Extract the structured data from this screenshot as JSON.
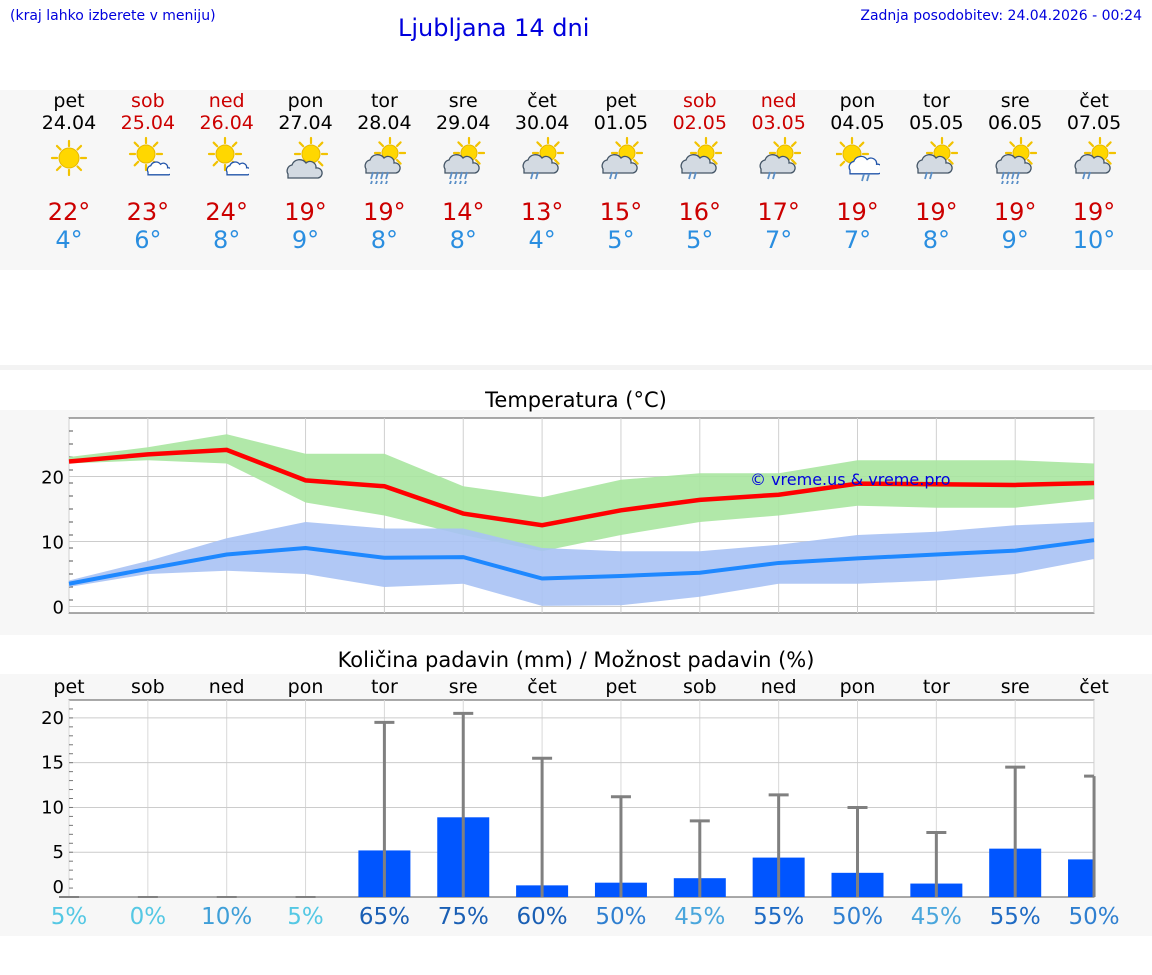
{
  "header": {
    "location_hint": "(kraj lahko izberete v meniju)",
    "title": "Ljubljana 14 dni",
    "last_update": "Zadnja posodobitev: 24.04.2026 - 00:24"
  },
  "days": [
    {
      "name": "pet",
      "date": "24.04",
      "weekend": false,
      "icon": "sun-icon",
      "max": "22°",
      "min": "4°"
    },
    {
      "name": "sob",
      "date": "25.04",
      "weekend": true,
      "icon": "sun-cloud-icon",
      "max": "23°",
      "min": "6°"
    },
    {
      "name": "ned",
      "date": "26.04",
      "weekend": true,
      "icon": "sun-cloud-icon",
      "max": "24°",
      "min": "8°"
    },
    {
      "name": "pon",
      "date": "27.04",
      "weekend": false,
      "icon": "cloud-sun-icon",
      "max": "19°",
      "min": "9°"
    },
    {
      "name": "tor",
      "date": "28.04",
      "weekend": false,
      "icon": "rain-heavy-sun-icon",
      "max": "19°",
      "min": "8°"
    },
    {
      "name": "sre",
      "date": "29.04",
      "weekend": false,
      "icon": "rain-heavy-sun-icon",
      "max": "14°",
      "min": "8°"
    },
    {
      "name": "čet",
      "date": "30.04",
      "weekend": false,
      "icon": "rain-sun-icon",
      "max": "13°",
      "min": "4°"
    },
    {
      "name": "pet",
      "date": "01.05",
      "weekend": false,
      "icon": "rain-sun-icon",
      "max": "15°",
      "min": "5°"
    },
    {
      "name": "sob",
      "date": "02.05",
      "weekend": true,
      "icon": "rain-sun-icon",
      "max": "16°",
      "min": "5°"
    },
    {
      "name": "ned",
      "date": "03.05",
      "weekend": true,
      "icon": "rain-sun-icon",
      "max": "17°",
      "min": "7°"
    },
    {
      "name": "pon",
      "date": "04.05",
      "weekend": false,
      "icon": "sun-cloud-rain-icon",
      "max": "19°",
      "min": "7°"
    },
    {
      "name": "tor",
      "date": "05.05",
      "weekend": false,
      "icon": "rain-sun-icon",
      "max": "19°",
      "min": "8°"
    },
    {
      "name": "sre",
      "date": "06.05",
      "weekend": false,
      "icon": "rain-heavy-sun-icon",
      "max": "19°",
      "min": "9°"
    },
    {
      "name": "čet",
      "date": "07.05",
      "weekend": false,
      "icon": "rain-sun-icon",
      "max": "19°",
      "min": "10°"
    }
  ],
  "colors": {
    "weekday": "#000000",
    "weekend": "#cc0000",
    "max_temp": "#cc0000",
    "min_temp": "#2a8ee0",
    "max_band": "#a8e6a0",
    "min_band": "#a9c2f4",
    "max_line": "#ff0000",
    "min_line": "#1e88ff",
    "bar": "#0055ff",
    "error_bar": "#808080"
  },
  "chart_data": [
    {
      "type": "line",
      "title": "Temperatura (°C)",
      "watermark": "© vreme.us & vreme.pro",
      "x": [
        "24.04",
        "25.04",
        "26.04",
        "27.04",
        "28.04",
        "29.04",
        "30.04",
        "01.05",
        "02.05",
        "03.05",
        "04.05",
        "05.05",
        "06.05",
        "07.05"
      ],
      "ylim": [
        -1,
        29
      ],
      "yticks": [
        0,
        10,
        20
      ],
      "grid": true,
      "series": [
        {
          "role": "max",
          "values": [
            22.3,
            23.4,
            24.1,
            19.4,
            18.5,
            14.3,
            12.5,
            14.8,
            16.4,
            17.2,
            18.9,
            18.8,
            18.7,
            19.0
          ],
          "band_high": [
            23,
            24.5,
            26.5,
            23.5,
            23.5,
            18.5,
            16.8,
            19.5,
            20.5,
            20.5,
            22.5,
            22.5,
            22.5,
            22
          ],
          "band_low": [
            22,
            22.5,
            22,
            16,
            14,
            11,
            8.5,
            11,
            13,
            14,
            15.5,
            15.2,
            15.2,
            16.5
          ]
        },
        {
          "role": "min",
          "values": [
            3.5,
            5.8,
            8,
            9,
            7.5,
            7.6,
            4.3,
            4.7,
            5.2,
            6.7,
            7.4,
            8.0,
            8.6,
            10.2
          ],
          "band_high": [
            4,
            7,
            10.5,
            13,
            12,
            12,
            9,
            8.5,
            8.5,
            9.5,
            11,
            11.5,
            12.5,
            13
          ],
          "band_low": [
            3,
            5,
            5.5,
            5,
            3,
            3.5,
            0.1,
            0.2,
            1.5,
            3.5,
            3.5,
            4,
            5,
            7.3
          ]
        }
      ]
    },
    {
      "type": "bar",
      "title": "Količina padavin (mm) / Možnost padavin (%)",
      "categories": [
        "pet",
        "sob",
        "ned",
        "pon",
        "tor",
        "sre",
        "čet",
        "pet",
        "sob",
        "ned",
        "pon",
        "tor",
        "sre",
        "čet"
      ],
      "values": [
        0,
        0,
        0,
        0,
        5.2,
        8.9,
        1.3,
        1.6,
        2.1,
        4.4,
        2.7,
        1.5,
        5.4,
        4.2
      ],
      "error_high": [
        0,
        0,
        0,
        0,
        19.5,
        20.5,
        15.5,
        11.2,
        8.5,
        11.4,
        10.0,
        7.2,
        14.5,
        13.5
      ],
      "probability": [
        "5%",
        "0%",
        "10%",
        "5%",
        "65%",
        "75%",
        "60%",
        "50%",
        "45%",
        "55%",
        "50%",
        "45%",
        "55%",
        "50%"
      ],
      "ylim": [
        0,
        22
      ],
      "yticks": [
        0,
        5,
        10,
        15,
        20
      ],
      "grid": true
    }
  ]
}
